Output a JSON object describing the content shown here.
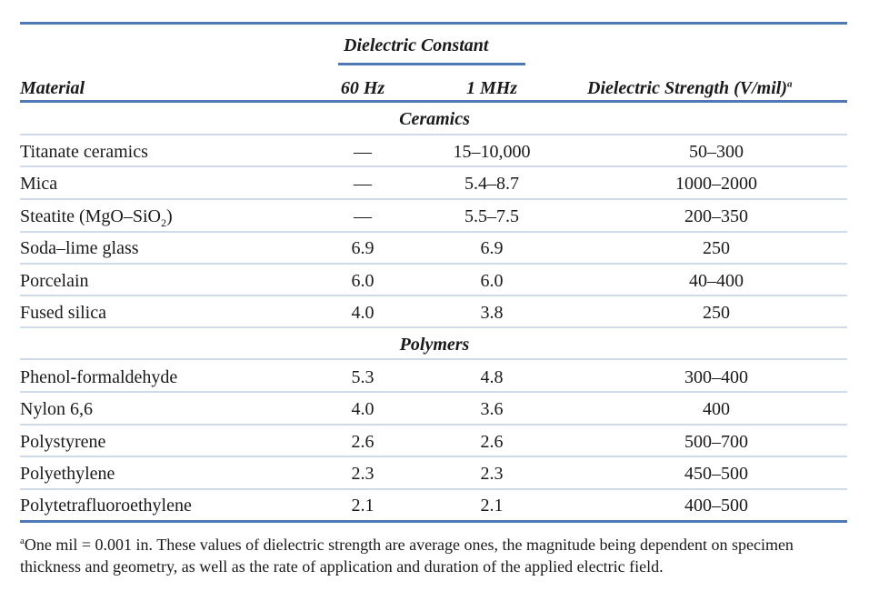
{
  "header": {
    "dielectric_constant": "Dielectric Constant",
    "material": "Material",
    "hz60": "60 Hz",
    "mhz1": "1 MHz",
    "strength": "Dielectric Strength (V/mil)",
    "strength_note_mark": "a"
  },
  "sections": {
    "ceramics": "Ceramics",
    "polymers": "Polymers"
  },
  "ceramics_rows": [
    {
      "material": "Titanate ceramics",
      "hz60": "—",
      "mhz1": "15–10,000",
      "strength": "50–300"
    },
    {
      "material": "Mica",
      "hz60": "—",
      "mhz1": "5.4–8.7",
      "strength": "1000–2000"
    },
    {
      "material_main": "Steatite (MgO–SiO",
      "material_sub": "2",
      "material_tail": ")",
      "hz60": "—",
      "mhz1": "5.5–7.5",
      "strength": "200–350"
    },
    {
      "material": "Soda–lime glass",
      "hz60": "6.9",
      "mhz1": "6.9",
      "strength": "250"
    },
    {
      "material": "Porcelain",
      "hz60": "6.0",
      "mhz1": "6.0",
      "strength": "40–400"
    },
    {
      "material": "Fused silica",
      "hz60": "4.0",
      "mhz1": "3.8",
      "strength": "250"
    }
  ],
  "polymers_rows": [
    {
      "material": "Phenol-formaldehyde",
      "hz60": "5.3",
      "mhz1": "4.8",
      "strength": "300–400"
    },
    {
      "material": "Nylon 6,6",
      "hz60": "4.0",
      "mhz1": "3.6",
      "strength": "400"
    },
    {
      "material": "Polystyrene",
      "hz60": "2.6",
      "mhz1": "2.6",
      "strength": "500–700"
    },
    {
      "material": "Polyethylene",
      "hz60": "2.3",
      "mhz1": "2.3",
      "strength": "450–500"
    },
    {
      "material": "Polytetrafluoroethylene",
      "hz60": "2.1",
      "mhz1": "2.1",
      "strength": "400–500"
    }
  ],
  "footnote": {
    "mark": "a",
    "text": "One mil = 0.001 in. These values of dielectric strength are average ones, the magnitude being dependent on specimen thickness and geometry, as well as the rate of application and duration of the applied electric field."
  },
  "colors": {
    "rule": "#4f79b5",
    "row_rule": "#cfdbea"
  }
}
